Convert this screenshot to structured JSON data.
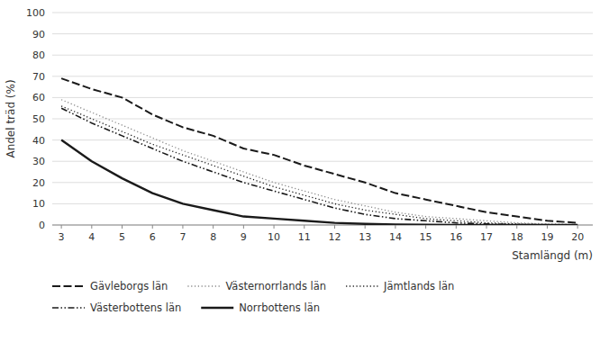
{
  "chart_data": {
    "type": "line",
    "x": [
      3,
      4,
      5,
      6,
      7,
      8,
      9,
      10,
      11,
      12,
      13,
      14,
      15,
      16,
      17,
      18,
      19,
      20
    ],
    "series": [
      {
        "name": "Gävleborgs län",
        "color": "#1a1a1a",
        "line_style": "dashed",
        "values": [
          69,
          64,
          60,
          52,
          46,
          42,
          36,
          33,
          28,
          24,
          20,
          15,
          12,
          9,
          6,
          4,
          2,
          1
        ]
      },
      {
        "name": "Västernorrlands län",
        "color": "#888888",
        "line_style": "dotted",
        "values": [
          59,
          53,
          47,
          41,
          35,
          30,
          25,
          20,
          16,
          12,
          9,
          6,
          4,
          3,
          2,
          1,
          0.5,
          0.2
        ]
      },
      {
        "name": "Jämtlands län",
        "color": "#1a1a1a",
        "line_style": "dotted",
        "values": [
          56,
          50,
          44,
          38,
          33,
          28,
          23,
          18,
          14,
          10,
          7,
          5,
          3,
          2,
          1,
          0.5,
          0.2,
          0.1
        ]
      },
      {
        "name": "Västerbottens län",
        "color": "#1a1a1a",
        "line_style": "dashdot",
        "values": [
          55,
          48,
          42,
          36,
          30,
          25,
          20,
          16,
          12,
          8,
          5,
          3,
          2,
          1,
          0.5,
          0.2,
          0.1,
          0
        ]
      },
      {
        "name": "Norrbottens län",
        "color": "#1a1a1a",
        "line_style": "solid",
        "values": [
          40,
          30,
          22,
          15,
          10,
          7,
          4,
          3,
          2,
          1,
          0.5,
          0.2,
          0.1,
          0,
          0,
          0,
          0,
          0
        ]
      }
    ],
    "ylabel": "Andel träd (%)",
    "xlabel": "Stamlängd (m)",
    "xlim": [
      2.7,
      20.5
    ],
    "ylim": [
      0,
      100
    ],
    "xticks": [
      3,
      4,
      5,
      6,
      7,
      8,
      9,
      10,
      11,
      12,
      13,
      14,
      15,
      16,
      17,
      18,
      19,
      20
    ],
    "yticks": [
      0,
      10,
      20,
      30,
      40,
      50,
      60,
      70,
      80,
      90,
      100
    ],
    "grid": true,
    "legend": "bottom"
  }
}
